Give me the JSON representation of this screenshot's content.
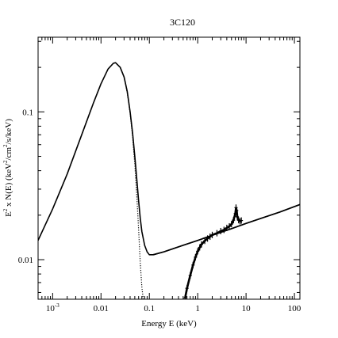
{
  "chart_data": {
    "type": "line",
    "title": "3C120",
    "xlabel": "Energy E (keV)",
    "ylabel": {
      "prefix": "E",
      "sup1": "2",
      "mid": " x N(E) (keV",
      "sup2": "2",
      "rest": "/cm",
      "sup3": "2",
      "end": "/s/keV)"
    },
    "xscale": "log",
    "yscale": "log",
    "xlim": [
      0.0005,
      130
    ],
    "ylim": [
      0.0054,
      0.32
    ],
    "xticks": [
      {
        "value": 0.001,
        "label": "10",
        "sup": "-3"
      },
      {
        "value": 0.01,
        "label": "0.01",
        "sup": ""
      },
      {
        "value": 0.1,
        "label": "0.1",
        "sup": ""
      },
      {
        "value": 1,
        "label": "1",
        "sup": ""
      },
      {
        "value": 10,
        "label": "10",
        "sup": ""
      },
      {
        "value": 100,
        "label": "100",
        "sup": ""
      }
    ],
    "yticks": [
      {
        "value": 0.01,
        "label": "0.01"
      },
      {
        "value": 0.1,
        "label": "0.1"
      }
    ],
    "grid": false,
    "series": [
      {
        "role": "thermal-disk-component",
        "style": "dotted",
        "color": "#000000",
        "x": [
          0.0005,
          0.001,
          0.002,
          0.004,
          0.007,
          0.01,
          0.014,
          0.018,
          0.02,
          0.025,
          0.03,
          0.035,
          0.04,
          0.045,
          0.05,
          0.055,
          0.06,
          0.065,
          0.07,
          0.075
        ],
        "y": [
          0.0135,
          0.022,
          0.038,
          0.07,
          0.115,
          0.155,
          0.195,
          0.213,
          0.215,
          0.2,
          0.172,
          0.135,
          0.098,
          0.068,
          0.044,
          0.027,
          0.016,
          0.0095,
          0.0065,
          0.0054
        ]
      },
      {
        "role": "power-law-component",
        "style": "solid",
        "color": "#000000",
        "x": [
          0.12,
          0.2,
          0.5,
          1,
          2,
          5,
          10,
          20,
          50,
          130
        ],
        "y": [
          0.0108,
          0.0113,
          0.0125,
          0.0135,
          0.0146,
          0.0162,
          0.0176,
          0.019,
          0.021,
          0.0236
        ]
      },
      {
        "role": "total-model",
        "style": "solid",
        "color": "#000000",
        "x": [
          0.0005,
          0.001,
          0.002,
          0.004,
          0.007,
          0.01,
          0.014,
          0.018,
          0.02,
          0.025,
          0.03,
          0.035,
          0.04,
          0.045,
          0.05,
          0.055,
          0.06,
          0.065,
          0.07,
          0.08,
          0.09,
          0.1,
          0.12,
          0.2,
          0.5,
          1,
          2,
          5,
          10,
          20,
          50,
          130
        ],
        "y": [
          0.0135,
          0.022,
          0.038,
          0.07,
          0.115,
          0.155,
          0.195,
          0.213,
          0.215,
          0.2,
          0.172,
          0.137,
          0.1,
          0.072,
          0.05,
          0.035,
          0.025,
          0.019,
          0.0155,
          0.0125,
          0.0113,
          0.0108,
          0.0108,
          0.0113,
          0.0125,
          0.0135,
          0.0146,
          0.0162,
          0.0176,
          0.019,
          0.021,
          0.0236
        ]
      },
      {
        "role": "absorbed-data",
        "style": "markers",
        "color": "#000000",
        "x": [
          0.55,
          0.6,
          0.7,
          0.8,
          0.9,
          1.0,
          1.1,
          1.2,
          1.4,
          1.6,
          1.8,
          2.0,
          2.5,
          3.0,
          3.5,
          4.0,
          4.5,
          5.0,
          5.5,
          6.0,
          6.2,
          6.4,
          6.6,
          7.0,
          7.5,
          8.0
        ],
        "y": [
          0.0055,
          0.0064,
          0.0078,
          0.0092,
          0.0104,
          0.0114,
          0.0121,
          0.0127,
          0.0134,
          0.0139,
          0.0143,
          0.0147,
          0.0151,
          0.0156,
          0.0159,
          0.0164,
          0.0168,
          0.0174,
          0.0185,
          0.0205,
          0.0225,
          0.0215,
          0.0195,
          0.0185,
          0.0182,
          0.0184
        ]
      }
    ]
  }
}
